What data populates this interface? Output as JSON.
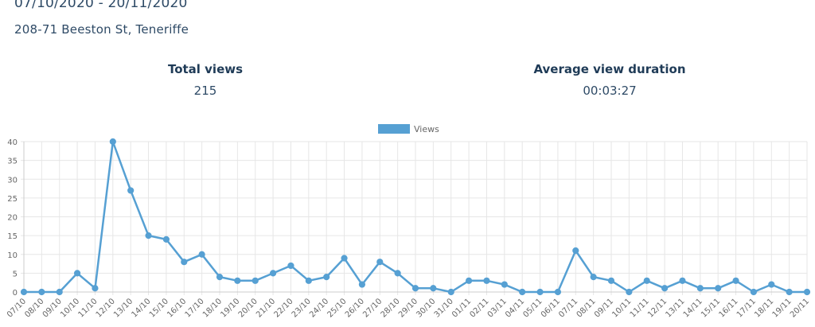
{
  "header": {
    "date_range": "07/10/2020 - 20/11/2020",
    "address": "208-71 Beeston St, Teneriffe"
  },
  "stats": {
    "total_views_label": "Total views",
    "total_views_value": "215",
    "avg_duration_label": "Average view duration",
    "avg_duration_value": "00:03:27"
  },
  "colors": {
    "series": "#56a0d3",
    "grid": "#e6e6e6",
    "axis_text": "#666666"
  },
  "chart_data": {
    "type": "line",
    "categories": [
      "07/10",
      "08/10",
      "09/10",
      "10/10",
      "11/10",
      "12/10",
      "13/10",
      "14/10",
      "15/10",
      "16/10",
      "17/10",
      "18/10",
      "19/10",
      "20/10",
      "21/10",
      "22/10",
      "23/10",
      "24/10",
      "25/10",
      "26/10",
      "27/10",
      "28/10",
      "29/10",
      "30/10",
      "31/10",
      "01/11",
      "02/11",
      "03/11",
      "04/11",
      "05/11",
      "06/11",
      "07/11",
      "08/11",
      "09/11",
      "10/11",
      "11/11",
      "12/11",
      "13/11",
      "14/11",
      "15/11",
      "16/11",
      "17/11",
      "18/11",
      "19/11",
      "20/11"
    ],
    "series": [
      {
        "name": "Views",
        "values": [
          0,
          0,
          0,
          5,
          1,
          40,
          27,
          15,
          14,
          8,
          10,
          4,
          3,
          3,
          5,
          7,
          3,
          4,
          9,
          2,
          8,
          5,
          1,
          1,
          0,
          3,
          3,
          2,
          0,
          0,
          0,
          11,
          4,
          3,
          0,
          3,
          1,
          3,
          1,
          1,
          3,
          0,
          2,
          0,
          0
        ]
      }
    ],
    "yticks": [
      0,
      5,
      10,
      15,
      20,
      25,
      30,
      35,
      40
    ],
    "ylim": [
      0,
      40
    ],
    "grid": true,
    "legend": "top-center"
  }
}
